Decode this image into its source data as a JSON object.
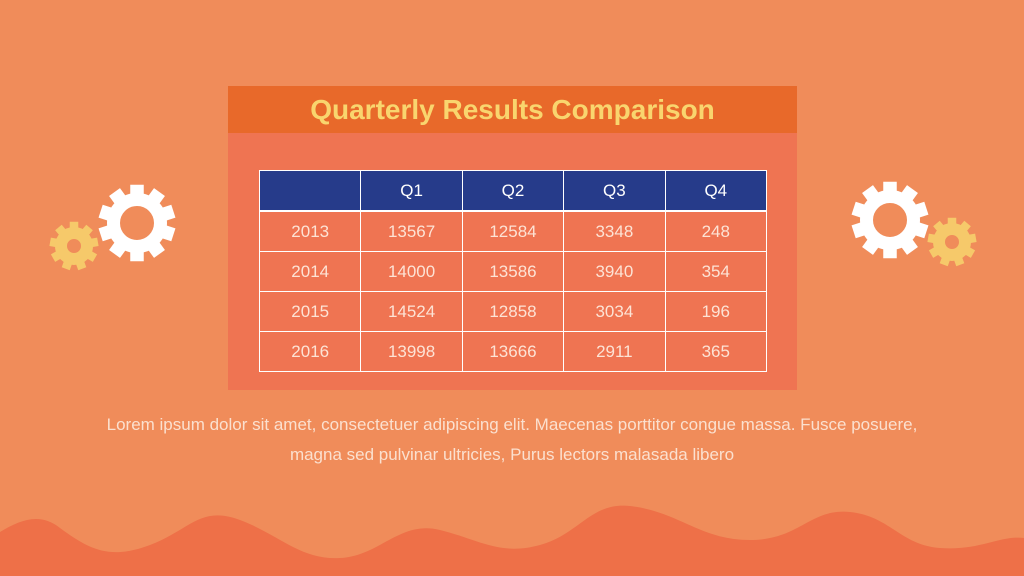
{
  "title": "Quarterly Results Comparison",
  "table": {
    "header": [
      "Q1",
      "Q2",
      "Q3",
      "Q4"
    ],
    "rows": [
      [
        2013,
        13567,
        12584,
        3348,
        248
      ],
      [
        2014,
        14000,
        13586,
        3940,
        354
      ],
      [
        2015,
        14524,
        12858,
        3034,
        196
      ],
      [
        2016,
        13998,
        13666,
        2911,
        365
      ]
    ]
  },
  "paragraph": "Lorem ipsum dolor sit amet, consectetuer adipiscing elit. Maecenas porttitor congue massa. Fusce posuere, magna sed pulvinar ultricies, Purus lectors malasada libero"
}
